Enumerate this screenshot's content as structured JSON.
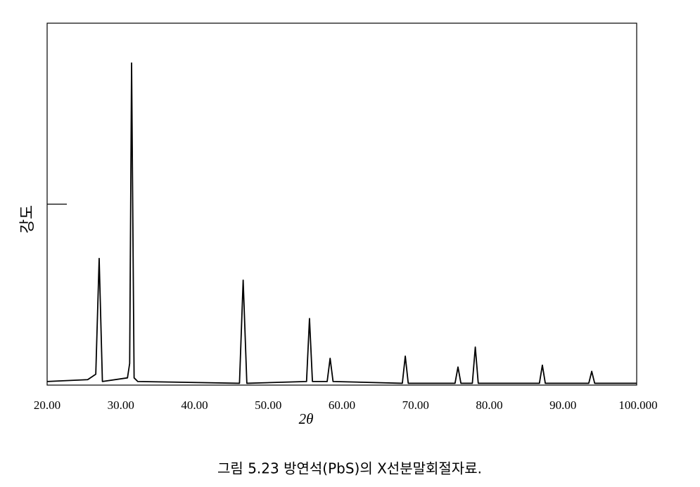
{
  "chart_data": {
    "type": "line",
    "xlabel": "2θ",
    "ylabel": "강도",
    "caption": "그림 5.23  방연석(PbS)의 X선분말회절자료.",
    "x": [
      20,
      25.5,
      26.6,
      27.06,
      27.5,
      30.9,
      31.2,
      31.46,
      31.8,
      32.3,
      46.1,
      46.6,
      47.1,
      55.2,
      55.6,
      56.0,
      58.0,
      58.4,
      58.8,
      68.2,
      68.6,
      69.0,
      75.35,
      75.75,
      76.15,
      77.7,
      78.1,
      78.5,
      86.8,
      87.2,
      87.6,
      93.5,
      93.9,
      94.3,
      100
    ],
    "y": [
      1,
      1.5,
      3,
      35,
      1,
      2,
      6,
      89,
      2,
      1,
      0.5,
      29,
      0.5,
      1,
      18.4,
      1,
      1,
      7.4,
      1,
      0.5,
      8,
      0.5,
      0.5,
      5,
      0.5,
      0.5,
      10.5,
      0.5,
      0.5,
      5.5,
      0.5,
      0.5,
      3.8,
      0.5,
      0.5
    ],
    "color": "#000000",
    "xlim": [
      20,
      100
    ],
    "xticks": [
      {
        "value": 20,
        "label": "20.00"
      },
      {
        "value": 30,
        "label": "30.00"
      },
      {
        "value": 40,
        "label": "40.00"
      },
      {
        "value": 50,
        "label": "50.00"
      },
      {
        "value": 60,
        "label": "60.00"
      },
      {
        "value": 70,
        "label": "70.00"
      },
      {
        "value": 80,
        "label": "80.00"
      },
      {
        "value": 90,
        "label": "90.00"
      },
      {
        "value": 100,
        "label": "100.000"
      }
    ],
    "ylim": [
      0,
      100
    ],
    "yticks": [
      50
    ]
  }
}
